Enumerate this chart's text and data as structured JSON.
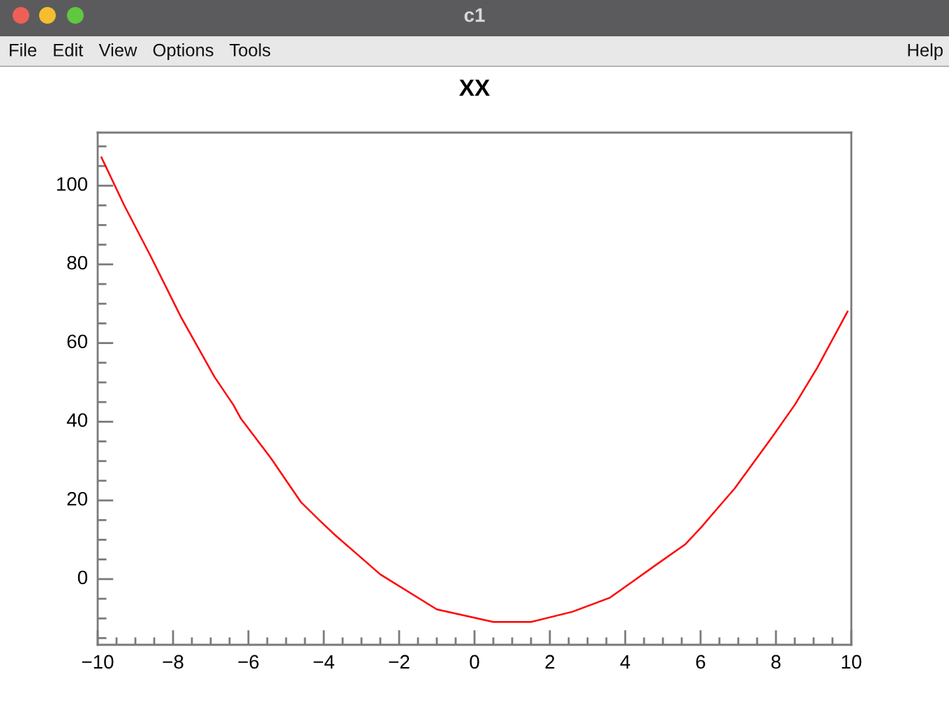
{
  "chart_data": {
    "type": "line",
    "title": "XX",
    "annotations": [
      "c1",
      "File",
      "Edit",
      "View",
      "Options",
      "Tools",
      "Help"
    ],
    "x": [
      -9.9,
      -9.3,
      -8.6,
      -7.8,
      -6.9,
      -6.4,
      -6.2,
      -5.4,
      -4.6,
      -4.1,
      -3.7,
      -2.5,
      -1.0,
      0.5,
      1.5,
      2.6,
      3.6,
      4.2,
      4.8,
      5.6,
      6.0,
      6.9,
      7.9,
      8.5,
      9.1,
      9.9
    ],
    "series": [
      {
        "color": "#ff0000",
        "values": [
          107.2,
          95.1,
          82.2,
          66.8,
          51.4,
          44.3,
          40.8,
          30.7,
          19.5,
          14.8,
          11.2,
          1.2,
          -7.7,
          -10.9,
          -10.9,
          -8.3,
          -4.7,
          -0.6,
          3.5,
          8.9,
          13.0,
          23.0,
          36.1,
          44.3,
          53.8,
          68.0
        ]
      }
    ],
    "xlim": [
      -10,
      10
    ],
    "ylim": [
      -16.7,
      113.5
    ],
    "xticks": [
      -10,
      -8,
      -6,
      -4,
      -2,
      0,
      2,
      4,
      6,
      8,
      10
    ],
    "yticks": [
      0,
      20,
      40,
      60,
      80,
      100
    ],
    "line_style": "solid"
  }
}
